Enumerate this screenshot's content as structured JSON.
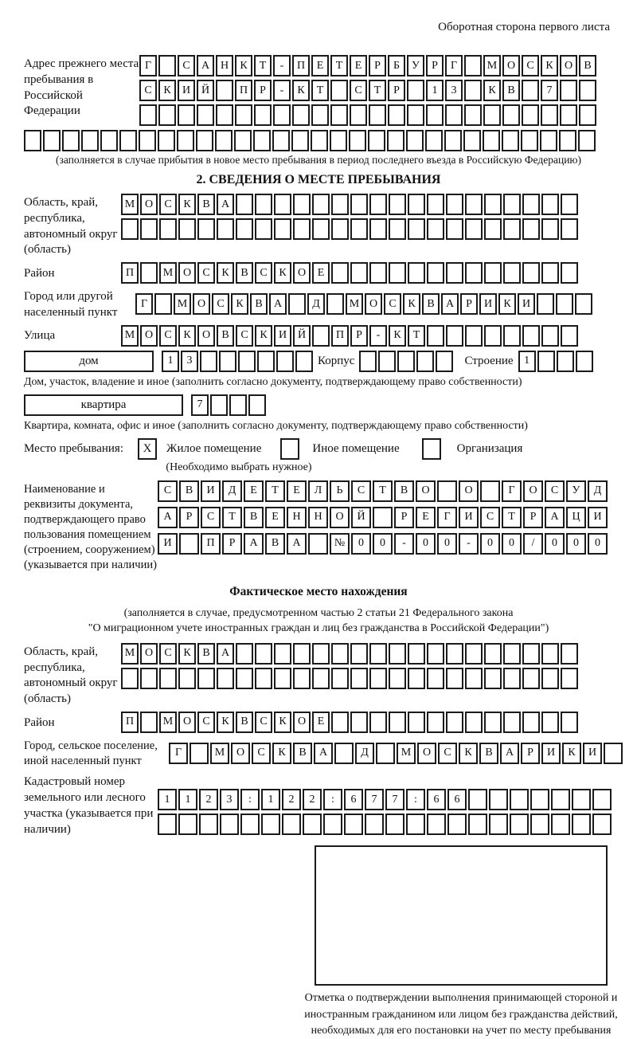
{
  "page_header": "Оборотная сторона первого листа",
  "prev_address": {
    "label": "Адрес прежнего места пребывания в Российской Федерации",
    "row1": [
      "Г",
      "",
      "С",
      "А",
      "Н",
      "К",
      "Т",
      "-",
      "П",
      "Е",
      "Т",
      "Е",
      "Р",
      "Б",
      "У",
      "Р",
      "Г",
      "",
      "М",
      "О",
      "С",
      "К",
      "О",
      "В"
    ],
    "row2": [
      "С",
      "К",
      "И",
      "Й",
      "",
      "П",
      "Р",
      "-",
      "К",
      "Т",
      "",
      "С",
      "Т",
      "Р",
      "",
      "1",
      "3",
      "",
      "К",
      "В",
      "",
      "7",
      "",
      ""
    ],
    "row3": [
      "",
      "",
      "",
      "",
      "",
      "",
      "",
      "",
      "",
      "",
      "",
      "",
      "",
      "",
      "",
      "",
      "",
      "",
      "",
      "",
      "",
      "",
      "",
      ""
    ],
    "full_row": [
      "",
      "",
      "",
      "",
      "",
      "",
      "",
      "",
      "",
      "",
      "",
      "",
      "",
      "",
      "",
      "",
      "",
      "",
      "",
      "",
      "",
      "",
      "",
      "",
      "",
      "",
      "",
      "",
      "",
      ""
    ],
    "note": "(заполняется в случае прибытия в новое место пребывания в период последнего въезда в Российскую Федерацию)"
  },
  "section2": {
    "title": "2. СВЕДЕНИЯ О МЕСТЕ ПРЕБЫВАНИЯ",
    "region": {
      "label": "Область, край, республика, автономный округ (область)",
      "row1": [
        "М",
        "О",
        "С",
        "К",
        "В",
        "А",
        "",
        "",
        "",
        "",
        "",
        "",
        "",
        "",
        "",
        "",
        "",
        "",
        "",
        "",
        "",
        "",
        "",
        ""
      ],
      "row2": [
        "",
        "",
        "",
        "",
        "",
        "",
        "",
        "",
        "",
        "",
        "",
        "",
        "",
        "",
        "",
        "",
        "",
        "",
        "",
        "",
        "",
        "",
        "",
        ""
      ]
    },
    "district": {
      "label": "Район",
      "row": [
        "П",
        "",
        "М",
        "О",
        "С",
        "К",
        "В",
        "С",
        "К",
        "О",
        "Е",
        "",
        "",
        "",
        "",
        "",
        "",
        "",
        "",
        "",
        "",
        "",
        "",
        ""
      ]
    },
    "city": {
      "label": "Город или другой населенный пункт",
      "row": [
        "Г",
        "",
        "М",
        "О",
        "С",
        "К",
        "В",
        "А",
        "",
        "Д",
        "",
        "М",
        "О",
        "С",
        "К",
        "В",
        "А",
        "Р",
        "И",
        "К",
        "И",
        "",
        "",
        ""
      ]
    },
    "street": {
      "label": "Улица",
      "row": [
        "М",
        "О",
        "С",
        "К",
        "О",
        "В",
        "С",
        "К",
        "И",
        "Й",
        "",
        "П",
        "Р",
        "-",
        "К",
        "Т",
        "",
        "",
        "",
        "",
        "",
        "",
        "",
        ""
      ]
    },
    "house_row": {
      "house_label": "дом",
      "house_cells": [
        "1",
        "3",
        "",
        "",
        "",
        "",
        "",
        ""
      ],
      "korpus_label": "Корпус",
      "korpus_cells": [
        "",
        "",
        "",
        "",
        ""
      ],
      "stroenie_label": "Строение",
      "stroenie_cells": [
        "1",
        "",
        "",
        ""
      ]
    },
    "house_note": "Дом, участок, владение и иное (заполнить согласно документу, подтверждающему право собственности)",
    "apartment_row": {
      "label": "квартира",
      "cells": [
        "7",
        "",
        "",
        ""
      ]
    },
    "apartment_note": "Квартира, комната, офис и иное (заполнить согласно документу, подтверждающему право собственности)",
    "stay_type": {
      "label": "Место пребывания:",
      "options": [
        {
          "mark": "X",
          "label": "Жилое помещение"
        },
        {
          "mark": "",
          "label": "Иное помещение"
        },
        {
          "mark": "",
          "label": "Организация"
        }
      ],
      "note": "(Необходимо выбрать нужное)"
    },
    "document": {
      "label": "Наименование и реквизиты документа, подтверждающего право пользования помещением (строением, сооружением) (указывается при наличии)",
      "row1": [
        "С",
        "В",
        "И",
        "Д",
        "Е",
        "Т",
        "Е",
        "Л",
        "Ь",
        "С",
        "Т",
        "В",
        "О",
        "",
        "О",
        "",
        "Г",
        "О",
        "С",
        "У",
        "Д"
      ],
      "row2": [
        "А",
        "Р",
        "С",
        "Т",
        "В",
        "Е",
        "Н",
        "Н",
        "О",
        "Й",
        "",
        "Р",
        "Е",
        "Г",
        "И",
        "С",
        "Т",
        "Р",
        "А",
        "Ц",
        "И"
      ],
      "row3": [
        "И",
        "",
        "П",
        "Р",
        "А",
        "В",
        "А",
        "",
        "№",
        "0",
        "0",
        "-",
        "0",
        "0",
        "-",
        "0",
        "0",
        "/",
        "0",
        "0",
        "0"
      ]
    }
  },
  "actual_location": {
    "title": "Фактическое место нахождения",
    "note1": "(заполняется в случае, предусмотренном частью 2 статьи 21 Федерального закона",
    "note2": "\"О миграционном учете иностранных граждан и лиц без гражданства в Российской Федерации\")",
    "region": {
      "label": "Область, край, республика, автономный округ (область)",
      "row1": [
        "М",
        "О",
        "С",
        "К",
        "В",
        "А",
        "",
        "",
        "",
        "",
        "",
        "",
        "",
        "",
        "",
        "",
        "",
        "",
        "",
        "",
        "",
        "",
        "",
        ""
      ],
      "row2": [
        "",
        "",
        "",
        "",
        "",
        "",
        "",
        "",
        "",
        "",
        "",
        "",
        "",
        "",
        "",
        "",
        "",
        "",
        "",
        "",
        "",
        "",
        "",
        ""
      ]
    },
    "district": {
      "label": "Район",
      "row": [
        "П",
        "",
        "М",
        "О",
        "С",
        "К",
        "В",
        "С",
        "К",
        "О",
        "Е",
        "",
        "",
        "",
        "",
        "",
        "",
        "",
        "",
        "",
        "",
        "",
        "",
        ""
      ]
    },
    "city": {
      "label": "Город, сельское поселение, иной населенный пункт",
      "row": [
        "Г",
        "",
        "М",
        "О",
        "С",
        "К",
        "В",
        "А",
        "",
        "Д",
        "",
        "М",
        "О",
        "С",
        "К",
        "В",
        "А",
        "Р",
        "И",
        "К",
        "И",
        ""
      ]
    },
    "cadastral": {
      "label": "Кадастровый номер земельного или лесного участка (указывается при наличии)",
      "row1": [
        "1",
        "1",
        "2",
        "3",
        ":",
        "1",
        "2",
        "2",
        ":",
        "6",
        "7",
        "7",
        ":",
        "6",
        "6",
        "",
        "",
        "",
        "",
        "",
        "",
        ""
      ],
      "row2": [
        "",
        "",
        "",
        "",
        "",
        "",
        "",
        "",
        "",
        "",
        "",
        "",
        "",
        "",
        "",
        "",
        "",
        "",
        "",
        "",
        "",
        ""
      ]
    }
  },
  "confirmation": {
    "caption": "Отметка о подтверждении выполнения принимающей стороной и иностранным гражданином или лицом без гражданства действий, необходимых для его постановки на учет по месту пребывания"
  }
}
